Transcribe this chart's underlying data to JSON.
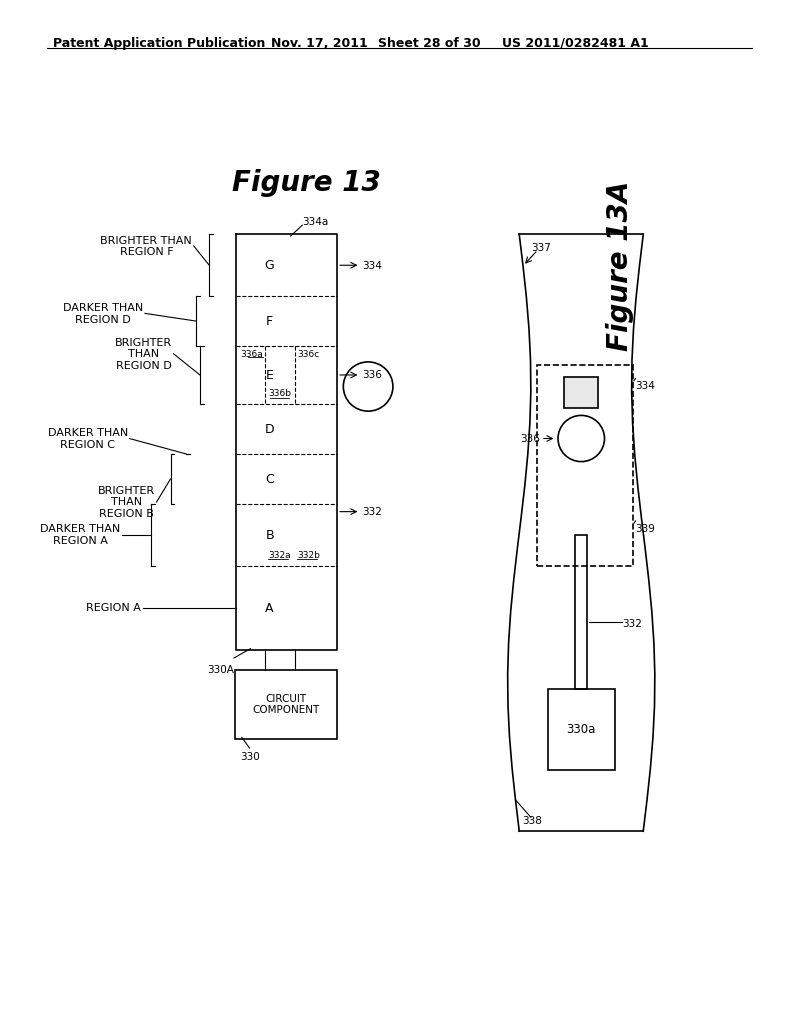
{
  "bg_color": "#ffffff",
  "header_text": "Patent Application Publication",
  "header_date": "Nov. 17, 2011",
  "header_sheet": "Sheet 28 of 30",
  "header_patent": "US 2011/0282481 A1",
  "fig13_title": "Figure 13",
  "fig13a_title": "Figure 13A",
  "black": "#000000",
  "lw": 1.2,
  "font_small": 7.5,
  "font_med": 9,
  "font_label": 8
}
